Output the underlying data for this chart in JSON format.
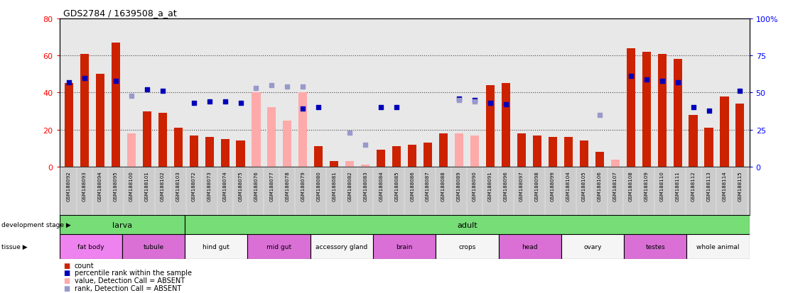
{
  "title": "GDS2784 / 1639508_a_at",
  "samples": [
    "GSM188092",
    "GSM188093",
    "GSM188094",
    "GSM188095",
    "GSM188100",
    "GSM188101",
    "GSM188102",
    "GSM188103",
    "GSM188072",
    "GSM188073",
    "GSM188074",
    "GSM188075",
    "GSM188076",
    "GSM188077",
    "GSM188078",
    "GSM188079",
    "GSM188080",
    "GSM188081",
    "GSM188082",
    "GSM188083",
    "GSM188084",
    "GSM188085",
    "GSM188086",
    "GSM188087",
    "GSM188088",
    "GSM188089",
    "GSM188090",
    "GSM188091",
    "GSM188096",
    "GSM188097",
    "GSM188098",
    "GSM188099",
    "GSM188104",
    "GSM188105",
    "GSM188106",
    "GSM188107",
    "GSM188108",
    "GSM188109",
    "GSM188110",
    "GSM188111",
    "GSM188112",
    "GSM188113",
    "GSM188114",
    "GSM188115"
  ],
  "counts": [
    45,
    61,
    50,
    67,
    null,
    30,
    29,
    21,
    17,
    16,
    15,
    14,
    null,
    null,
    null,
    null,
    11,
    3,
    null,
    null,
    9,
    11,
    12,
    13,
    18,
    null,
    null,
    44,
    45,
    18,
    17,
    16,
    16,
    14,
    8,
    null,
    64,
    62,
    61,
    58,
    28,
    21,
    38,
    34
  ],
  "absent_counts": [
    null,
    null,
    null,
    null,
    18,
    null,
    null,
    null,
    null,
    null,
    null,
    null,
    40,
    32,
    25,
    40,
    null,
    null,
    3,
    1,
    null,
    null,
    null,
    null,
    null,
    18,
    17,
    null,
    null,
    null,
    null,
    null,
    null,
    null,
    null,
    4,
    null,
    null,
    null,
    null,
    null,
    null,
    null,
    null
  ],
  "ranks": [
    57,
    60,
    null,
    58,
    null,
    52,
    51,
    null,
    43,
    44,
    44,
    43,
    null,
    null,
    null,
    39,
    40,
    null,
    null,
    null,
    40,
    40,
    null,
    null,
    null,
    46,
    45,
    43,
    42,
    null,
    null,
    null,
    null,
    null,
    null,
    null,
    61,
    59,
    58,
    57,
    40,
    38,
    null,
    51
  ],
  "absent_ranks": [
    null,
    null,
    null,
    null,
    48,
    null,
    null,
    null,
    null,
    null,
    null,
    null,
    53,
    55,
    54,
    54,
    null,
    null,
    23,
    15,
    null,
    null,
    null,
    null,
    null,
    45,
    44,
    null,
    null,
    null,
    null,
    null,
    null,
    null,
    35,
    null,
    null,
    null,
    null,
    null,
    null,
    null,
    null,
    null
  ],
  "dev_stages": [
    {
      "label": "larva",
      "start": 0,
      "end": 8
    },
    {
      "label": "adult",
      "start": 8,
      "end": 44
    }
  ],
  "tissues": [
    {
      "label": "fat body",
      "start": 0,
      "end": 4,
      "color": "#ee82ee"
    },
    {
      "label": "tubule",
      "start": 4,
      "end": 8,
      "color": "#da70d6"
    },
    {
      "label": "hind gut",
      "start": 8,
      "end": 12,
      "color": "#f5f5f5"
    },
    {
      "label": "mid gut",
      "start": 12,
      "end": 16,
      "color": "#da70d6"
    },
    {
      "label": "accessory gland",
      "start": 16,
      "end": 20,
      "color": "#f5f5f5"
    },
    {
      "label": "brain",
      "start": 20,
      "end": 24,
      "color": "#da70d6"
    },
    {
      "label": "crops",
      "start": 24,
      "end": 28,
      "color": "#f5f5f5"
    },
    {
      "label": "head",
      "start": 28,
      "end": 32,
      "color": "#da70d6"
    },
    {
      "label": "ovary",
      "start": 32,
      "end": 36,
      "color": "#f5f5f5"
    },
    {
      "label": "testes",
      "start": 36,
      "end": 40,
      "color": "#da70d6"
    },
    {
      "label": "whole animal",
      "start": 40,
      "end": 44,
      "color": "#f5f5f5"
    }
  ],
  "bar_color_present": "#cc2200",
  "bar_color_absent": "#ffaaaa",
  "dot_color_present": "#0000bb",
  "dot_color_absent": "#9999cc",
  "dev_color": "#77dd77",
  "plot_bg": "#e8e8e8",
  "xtick_bg": "#cccccc",
  "bar_width": 0.55,
  "dot_size": 20,
  "yticks_left": [
    0,
    20,
    40,
    60,
    80
  ],
  "yticks_right_vals": [
    0,
    25,
    50,
    75,
    100
  ],
  "yticks_right_labels": [
    "0",
    "25",
    "50",
    "75",
    "100%"
  ]
}
